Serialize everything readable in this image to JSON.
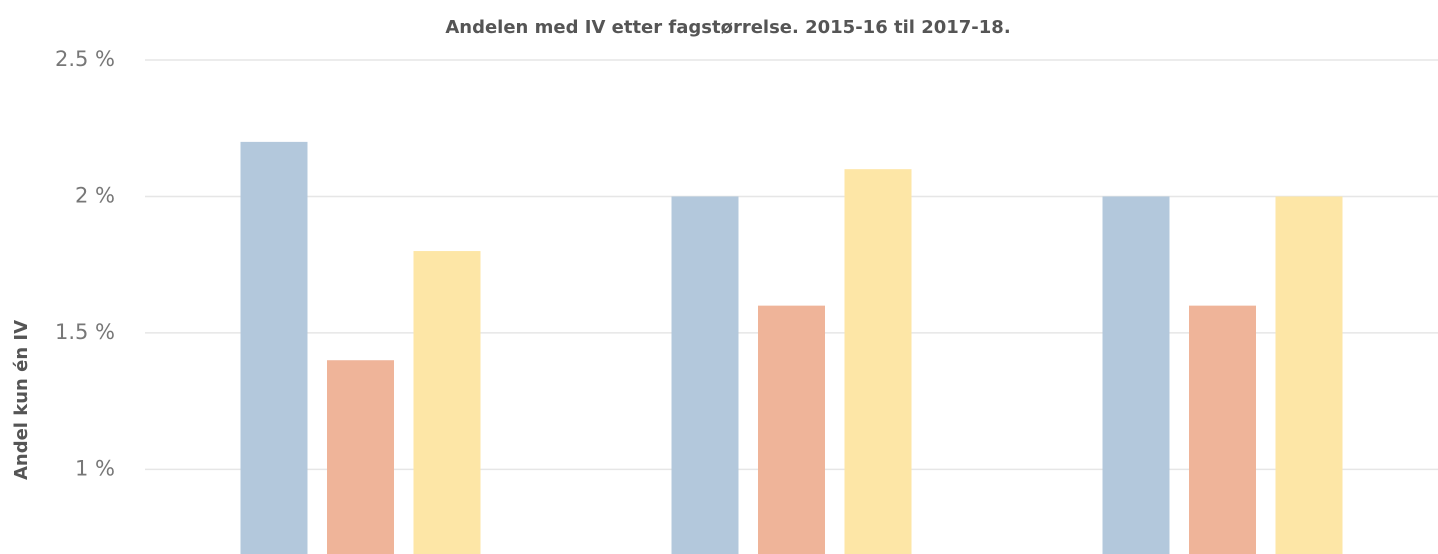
{
  "chart_data": {
    "type": "bar",
    "title": "Andelen med IV etter fagstørrelse. 2015-16 til 2017-18.",
    "y_label": "Andel kun én IV",
    "categories": [
      null,
      null,
      null
    ],
    "series": [
      {
        "color": "#b3c8dc",
        "values": [
          2.2,
          2.0,
          2.0
        ]
      },
      {
        "color": "#efb499",
        "values": [
          1.4,
          1.6,
          1.6
        ]
      },
      {
        "color": "#fde6a6",
        "values": [
          1.8,
          2.1,
          2.0
        ]
      }
    ],
    "ylim": [
      0.69,
      2.5
    ],
    "yticks": [
      {
        "value": 1,
        "label": "1 %"
      },
      {
        "value": 1.5,
        "label": "1.5 %"
      },
      {
        "value": 2,
        "label": "2 %"
      },
      {
        "value": 2.5,
        "label": "2.5 %"
      }
    ],
    "grid": true
  }
}
